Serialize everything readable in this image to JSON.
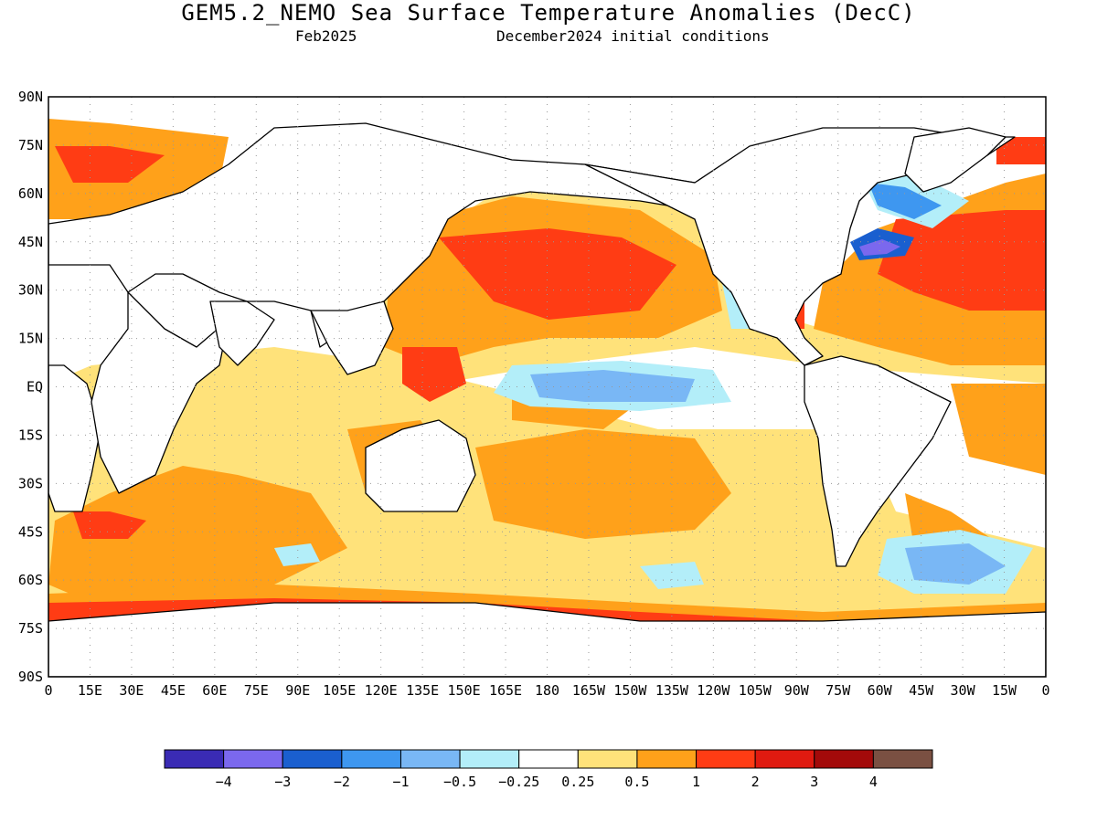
{
  "title": "GEM5.2_NEMO Sea Surface Temperature Anomalies (DecC)",
  "subtitle_left": "Feb2025",
  "subtitle_right": "December2024 initial conditions",
  "map": {
    "lon_ticks": [
      "0",
      "15E",
      "30E",
      "45E",
      "60E",
      "75E",
      "90E",
      "105E",
      "120E",
      "135E",
      "150E",
      "165E",
      "180",
      "165W",
      "150W",
      "135W",
      "120W",
      "105W",
      "90W",
      "75W",
      "60W",
      "45W",
      "30W",
      "15W",
      "0"
    ],
    "lat_ticks": [
      "90N",
      "75N",
      "60N",
      "45N",
      "30N",
      "15N",
      "EQ",
      "15S",
      "30S",
      "45S",
      "60S",
      "75S",
      "90S"
    ],
    "grid": true
  },
  "legend": {
    "colors": [
      "#3a2bb4",
      "#7b68ee",
      "#1a5fcf",
      "#3e97f0",
      "#79b7f5",
      "#b3eef9",
      "#ffffff",
      "#ffe27a",
      "#ffa11a",
      "#ff3c14",
      "#e01a10",
      "#a30a0a",
      "#7a5042"
    ],
    "labels": [
      "-4",
      "-3",
      "-2",
      "-1",
      "-0.5",
      "-0.25",
      "0.25",
      "0.5",
      "1",
      "2",
      "3",
      "4"
    ]
  },
  "colors": {
    "white_zone": "#ffffff",
    "light_yellow": "#ffe27a",
    "orange": "#ffa11a",
    "red_orange": "#ff3c14",
    "red": "#e01a10",
    "light_blue": "#b3eef9",
    "blue": "#79b7f5",
    "mid_blue": "#3e97f0",
    "deep_blue": "#1a5fcf",
    "violet": "#7b68ee"
  }
}
